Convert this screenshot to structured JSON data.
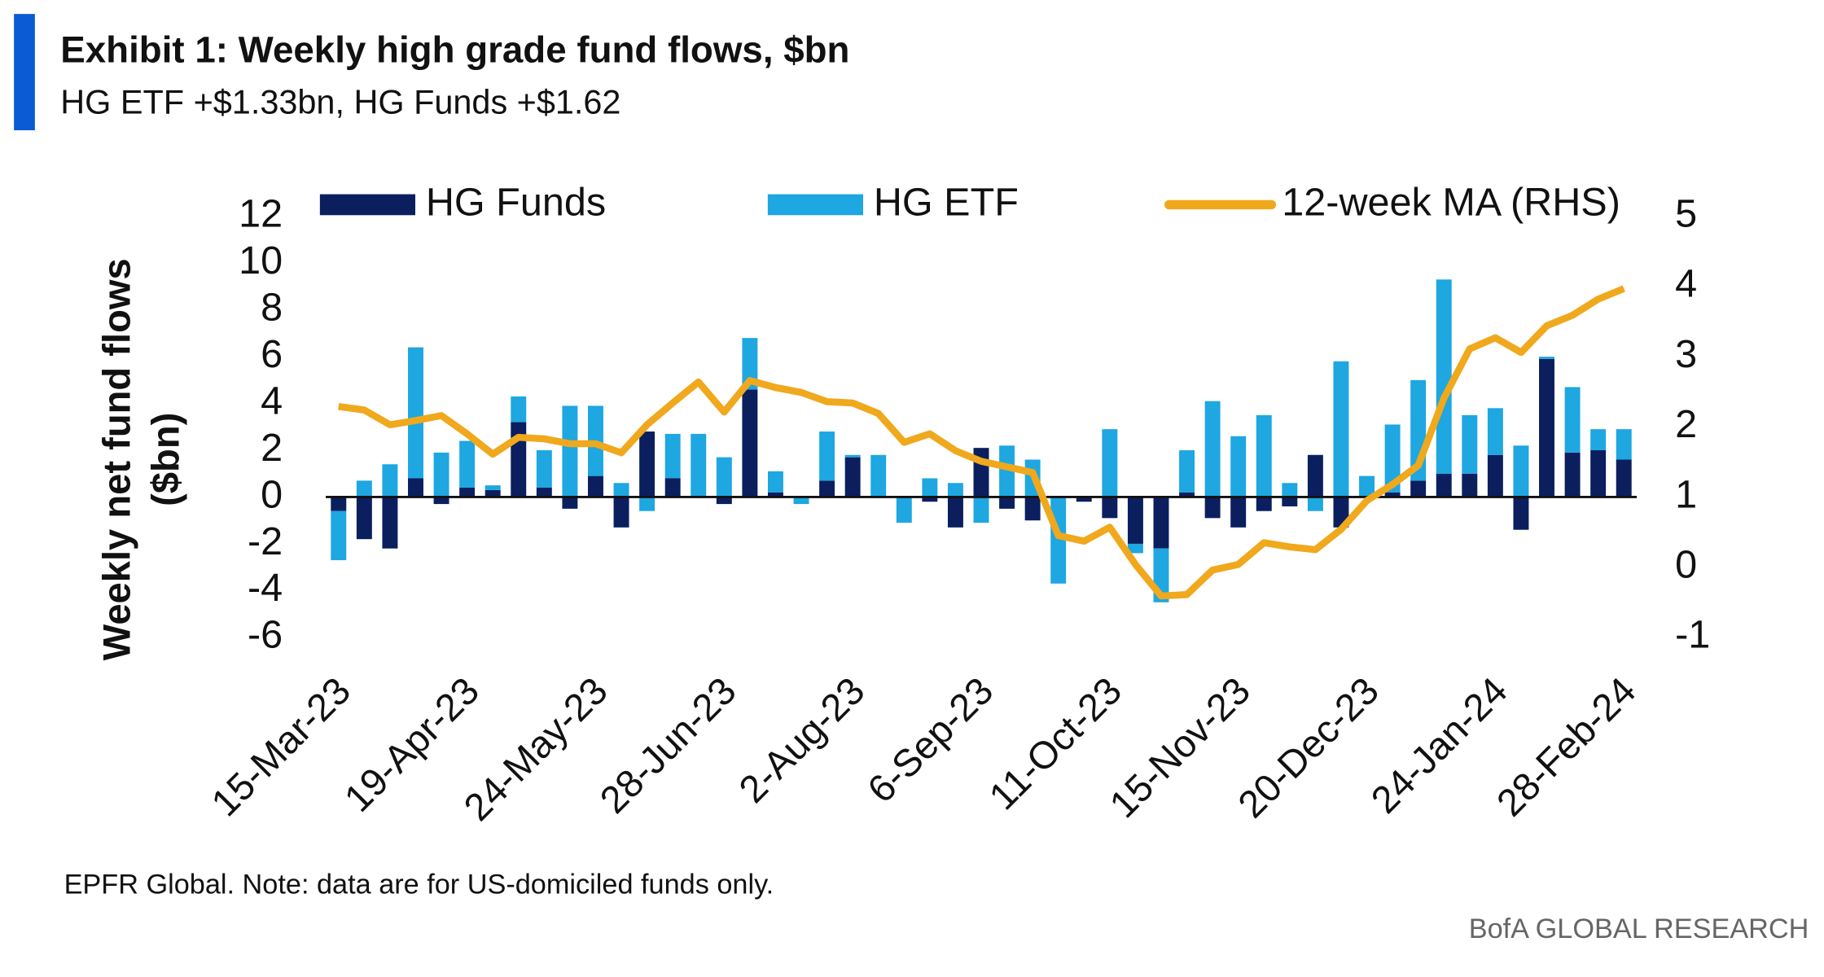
{
  "chart_data": {
    "type": "bar",
    "title": "Exhibit 1: Weekly high grade fund flows, $bn",
    "subtitle": "HG ETF +$1.33bn, HG Funds +$1.62",
    "y_label": [
      "Weekly net fund flows",
      "($bn)"
    ],
    "source": "EPFR Global. Note: data are for US-domiciled funds only.",
    "brand": "BofA GLOBAL RESEARCH",
    "stacked": true,
    "categories": [
      "15-Mar-23",
      null,
      null,
      null,
      null,
      "19-Apr-23",
      null,
      null,
      null,
      null,
      "24-May-23",
      null,
      null,
      null,
      null,
      "28-Jun-23",
      null,
      null,
      null,
      null,
      "2-Aug-23",
      null,
      null,
      null,
      null,
      "6-Sep-23",
      null,
      null,
      null,
      null,
      "11-Oct-23",
      null,
      null,
      null,
      null,
      "15-Nov-23",
      null,
      null,
      null,
      null,
      "20-Dec-23",
      null,
      null,
      null,
      null,
      "24-Jan-24",
      null,
      null,
      null,
      null,
      "28-Feb-24"
    ],
    "series": [
      {
        "name": "HG Funds",
        "color": "#0b1f5e",
        "values": [
          -0.6,
          -1.8,
          -2.2,
          0.8,
          -0.3,
          0.4,
          0.3,
          3.2,
          0.4,
          -0.5,
          0.9,
          -1.3,
          2.8,
          0.8,
          0,
          -0.3,
          4.6,
          0.2,
          0,
          0.7,
          1.7,
          0,
          0,
          -0.2,
          -1.3,
          2.1,
          -0.5,
          -1.0,
          0,
          -0.2,
          -0.9,
          -2.0,
          -2.2,
          0.2,
          -0.9,
          -1.3,
          -0.6,
          -0.4,
          1.8,
          -1.3,
          0,
          0.2,
          0.7,
          1.0,
          1.0,
          1.8,
          -1.4,
          5.9,
          1.9,
          2.0,
          1.6
        ]
      },
      {
        "name": "HG ETF",
        "color": "#1ea7e1",
        "values": [
          -2.1,
          0.7,
          1.4,
          5.6,
          1.9,
          2.0,
          0.2,
          1.1,
          1.6,
          3.9,
          3.0,
          0.6,
          -0.6,
          1.9,
          2.7,
          1.7,
          2.2,
          0.9,
          -0.3,
          2.1,
          0.1,
          1.8,
          -1.1,
          0.8,
          0.6,
          -1.1,
          2.2,
          1.6,
          -3.7,
          0,
          2.9,
          -0.4,
          -2.3,
          1.8,
          4.1,
          2.6,
          3.5,
          0.6,
          -0.6,
          5.8,
          0.9,
          2.9,
          4.3,
          8.3,
          2.5,
          2.0,
          2.2,
          0.1,
          2.8,
          0.9,
          1.3
        ]
      },
      {
        "name": "12-week MA (RHS)",
        "color": "#f0a81c",
        "axis": "y2",
        "values": [
          2.29,
          2.24,
          2.03,
          2.09,
          2.16,
          1.9,
          1.61,
          1.85,
          1.83,
          1.76,
          1.76,
          1.63,
          2.03,
          2.34,
          2.64,
          2.21,
          2.66,
          2.56,
          2.49,
          2.36,
          2.34,
          2.19,
          1.78,
          1.9,
          1.66,
          1.51,
          1.43,
          1.35,
          0.45,
          0.37,
          0.57,
          0.04,
          -0.41,
          -0.39,
          -0.04,
          0.04,
          0.35,
          0.29,
          0.25,
          0.54,
          0.95,
          1.18,
          1.45,
          2.41,
          3.11,
          3.27,
          3.06,
          3.44,
          3.59,
          3.82,
          3.97
        ]
      }
    ],
    "ylim": [
      -6,
      12
    ],
    "yticks": [
      -6,
      -4,
      -2,
      0,
      2,
      4,
      6,
      8,
      10,
      12
    ],
    "y2lim": [
      -1,
      5
    ],
    "y2ticks": [
      -1,
      0,
      1,
      2,
      3,
      4,
      5
    ],
    "grid": false,
    "legend": "top"
  }
}
